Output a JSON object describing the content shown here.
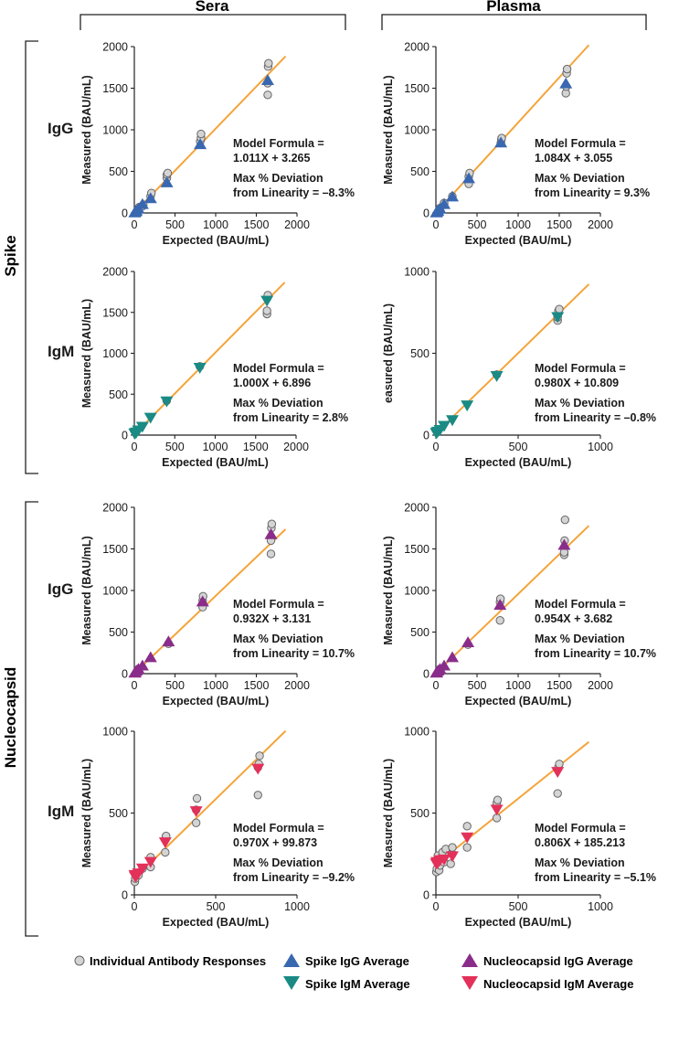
{
  "columns": [
    "Sera",
    "Plasma"
  ],
  "rows": {
    "spike": "Spike",
    "nucleocapsid": "Nucleocapsid"
  },
  "colors": {
    "line": "#f4a43a",
    "spike_igg": "#3a68b0",
    "spike_igm": "#1a8a84",
    "nucleo_igg": "#8a2d8a",
    "nucleo_igm": "#e3315a",
    "individual_fill": "#d4d4d4",
    "individual_stroke": "#666666"
  },
  "legend": [
    {
      "label": "Individual Antibody Responses",
      "marker": "circle",
      "color": "#d4d4d4"
    },
    {
      "label": "Spike IgG Average",
      "marker": "triangle-up",
      "color": "#3a68b0"
    },
    {
      "label": "Nucleocapsid IgG Average",
      "marker": "triangle-up",
      "color": "#8a2d8a"
    },
    {
      "label": "Spike IgM Average",
      "marker": "triangle-down",
      "color": "#1a8a84"
    },
    {
      "label": "Nucleocapsid IgM Average",
      "marker": "triangle-down",
      "color": "#e3315a"
    }
  ],
  "chart_data": [
    {
      "type": "scatter",
      "id": "sera-spike-igg",
      "row_label": "IgG",
      "xlabel": "Expected (BAU/mL)",
      "ylabel": "Measured (BAU/mL)",
      "xlim": [
        0,
        2000
      ],
      "ylim": [
        0,
        2000
      ],
      "xticks": [
        0,
        500,
        1000,
        1500,
        2000
      ],
      "yticks": [
        0,
        500,
        1000,
        1500,
        2000
      ],
      "fit": {
        "slope": 1.011,
        "intercept": 3.265
      },
      "annotation": [
        "Model Formula =",
        "1.011X + 3.265",
        "Max % Deviation",
        "from Linearity = –8.3%"
      ],
      "average": {
        "name": "Spike IgG Average",
        "marker": "triangle-up",
        "color": "#3a68b0",
        "x": [
          5,
          12,
          25,
          50,
          100,
          200,
          400,
          810,
          1640
        ],
        "y": [
          10,
          18,
          30,
          55,
          110,
          180,
          370,
          830,
          1600
        ]
      },
      "individual": {
        "name": "Individual Antibody Responses",
        "x": [
          50,
          60,
          100,
          110,
          200,
          210,
          400,
          400,
          410,
          810,
          820,
          820,
          1640,
          1640,
          1645,
          1650
        ],
        "y": [
          40,
          70,
          80,
          100,
          200,
          240,
          420,
          460,
          480,
          860,
          900,
          950,
          1420,
          1560,
          1760,
          1800
        ]
      }
    },
    {
      "type": "scatter",
      "id": "plasma-spike-igg",
      "row_label": "",
      "xlabel": "Expected (BAU/mL)",
      "ylabel": "Measured (BAU/mL)",
      "xlim": [
        0,
        2000
      ],
      "ylim": [
        0,
        2000
      ],
      "xticks": [
        0,
        500,
        1000,
        1500,
        2000
      ],
      "yticks": [
        0,
        500,
        1000,
        1500,
        2000
      ],
      "fit": {
        "slope": 1.084,
        "intercept": 3.055
      },
      "annotation": [
        "Model Formula =",
        "1.084X + 3.055",
        "Max % Deviation",
        "from Linearity = 9.3%"
      ],
      "average": {
        "name": "Spike IgG Average",
        "marker": "triangle-up",
        "color": "#3a68b0",
        "x": [
          5,
          12,
          25,
          50,
          100,
          200,
          400,
          790,
          1580
        ],
        "y": [
          10,
          18,
          30,
          55,
          110,
          200,
          420,
          850,
          1560
        ]
      },
      "individual": {
        "name": "Individual Antibody Responses",
        "x": [
          50,
          100,
          100,
          200,
          400,
          400,
          410,
          790,
          795,
          800,
          1580,
          1585,
          1590,
          1595
        ],
        "y": [
          60,
          100,
          120,
          200,
          350,
          440,
          480,
          840,
          880,
          900,
          1440,
          1520,
          1680,
          1730
        ]
      }
    },
    {
      "type": "scatter",
      "id": "sera-spike-igm",
      "row_label": "IgM",
      "xlabel": "Expected (BAU/mL)",
      "ylabel": "Measured (BAU/mL)",
      "xlim": [
        0,
        2000
      ],
      "ylim": [
        0,
        2000
      ],
      "xticks": [
        0,
        500,
        1000,
        1500,
        2000
      ],
      "yticks": [
        0,
        500,
        1000,
        1500,
        2000
      ],
      "fit": {
        "slope": 1.0,
        "intercept": 6.896
      },
      "annotation": [
        "Model Formula =",
        "1.000X + 6.896",
        "Max % Deviation",
        "from Linearity = 2.8%"
      ],
      "average": {
        "name": "Spike IgM Average",
        "marker": "triangle-down",
        "color": "#1a8a84",
        "x": [
          5,
          12,
          25,
          50,
          100,
          200,
          400,
          810,
          1640
        ],
        "y": [
          15,
          20,
          30,
          55,
          100,
          210,
          410,
          820,
          1640
        ]
      },
      "individual": {
        "name": "Individual Antibody Responses",
        "x": [
          400,
          810,
          1640,
          1640,
          1645,
          1650
        ],
        "y": [
          420,
          840,
          1480,
          1520,
          1680,
          1710
        ]
      }
    },
    {
      "type": "scatter",
      "id": "plasma-spike-igm",
      "row_label": "",
      "xlabel": "Expected (BAU/mL)",
      "ylabel": "easured (BAU/mL)",
      "xlim": [
        0,
        1000
      ],
      "ylim": [
        0,
        1000
      ],
      "xticks": [
        0,
        500,
        1000
      ],
      "yticks": [
        0,
        500,
        1000
      ],
      "fit": {
        "slope": 0.98,
        "intercept": 10.809
      },
      "annotation": [
        "Model Formula =",
        "0.980X + 10.809",
        "Max % Deviation",
        "from Linearity = –0.8%"
      ],
      "average": {
        "name": "Spike IgM Average",
        "marker": "triangle-down",
        "color": "#1a8a84",
        "x": [
          3,
          6,
          12,
          25,
          50,
          100,
          190,
          370,
          740
        ],
        "y": [
          10,
          15,
          20,
          30,
          55,
          90,
          180,
          360,
          720
        ]
      },
      "individual": {
        "name": "Individual Antibody Responses",
        "x": [
          370,
          740,
          740,
          745,
          750
        ],
        "y": [
          370,
          700,
          720,
          760,
          770
        ]
      }
    },
    {
      "type": "scatter",
      "id": "sera-nucleocapsid-igg",
      "row_label": "IgG",
      "xlabel": "Expected (BAU/mL)",
      "ylabel": "Measured (BAU/mL)",
      "xlim": [
        0,
        2000
      ],
      "ylim": [
        0,
        2000
      ],
      "xticks": [
        0,
        500,
        1000,
        1500,
        2000
      ],
      "yticks": [
        0,
        500,
        1000,
        1500,
        2000
      ],
      "fit": {
        "slope": 0.932,
        "intercept": 3.131
      },
      "annotation": [
        "Model Formula =",
        "0.932X + 3.131",
        "Max % Deviation",
        "from Linearity = 10.7%"
      ],
      "average": {
        "name": "Nucleocapsid IgG Average",
        "marker": "triangle-up",
        "color": "#8a2d8a",
        "x": [
          5,
          12,
          25,
          50,
          100,
          200,
          420,
          840,
          1680
        ],
        "y": [
          15,
          20,
          40,
          60,
          100,
          200,
          390,
          870,
          1680
        ]
      },
      "individual": {
        "name": "Individual Antibody Responses",
        "x": [
          420,
          840,
          840,
          845,
          1680,
          1680,
          1685,
          1690
        ],
        "y": [
          360,
          800,
          880,
          930,
          1440,
          1600,
          1750,
          1800
        ]
      }
    },
    {
      "type": "scatter",
      "id": "plasma-nucleocapsid-igg",
      "row_label": "",
      "xlabel": "Expected (BAU/mL)",
      "ylabel": "Measured (BAU/mL)",
      "xlim": [
        0,
        2000
      ],
      "ylim": [
        0,
        2000
      ],
      "xticks": [
        0,
        500,
        1000,
        1500,
        2000
      ],
      "yticks": [
        0,
        500,
        1000,
        1500,
        2000
      ],
      "fit": {
        "slope": 0.954,
        "intercept": 3.682
      },
      "annotation": [
        "Model Formula =",
        "0.954X + 3.682",
        "Max % Deviation",
        "from Linearity = 10.7%"
      ],
      "average": {
        "name": "Nucleocapsid IgG Average",
        "marker": "triangle-up",
        "color": "#8a2d8a",
        "x": [
          5,
          12,
          25,
          50,
          100,
          200,
          390,
          780,
          1560
        ],
        "y": [
          15,
          20,
          40,
          60,
          100,
          200,
          380,
          830,
          1550
        ]
      },
      "individual": {
        "name": "Individual Antibody Responses",
        "x": [
          390,
          780,
          780,
          785,
          1560,
          1560,
          1565,
          1570
        ],
        "y": [
          350,
          640,
          860,
          900,
          1430,
          1460,
          1600,
          1850
        ]
      }
    },
    {
      "type": "scatter",
      "id": "sera-nucleocapsid-igm",
      "row_label": "IgM",
      "xlabel": "Expected (BAU/mL)",
      "ylabel": "Measured (BAU/mL)",
      "xlim": [
        0,
        1000
      ],
      "ylim": [
        0,
        1000
      ],
      "xticks": [
        0,
        500,
        1000
      ],
      "yticks": [
        0,
        500,
        1000
      ],
      "fit": {
        "slope": 0.97,
        "intercept": 99.873
      },
      "annotation": [
        "Model Formula =",
        "0.970X + 99.873",
        "Max % Deviation",
        "from Linearity = –9.2%"
      ],
      "average": {
        "name": "Nucleocapsid IgM Average",
        "marker": "triangle-down",
        "color": "#e3315a",
        "x": [
          3,
          6,
          12,
          25,
          50,
          100,
          190,
          380,
          760
        ],
        "y": [
          120,
          110,
          115,
          130,
          160,
          200,
          320,
          510,
          770
        ]
      },
      "individual": {
        "name": "Individual Antibody Responses",
        "x": [
          3,
          6,
          12,
          25,
          50,
          100,
          100,
          190,
          190,
          195,
          380,
          380,
          385,
          760,
          760,
          765,
          770
        ],
        "y": [
          80,
          100,
          130,
          120,
          160,
          170,
          230,
          260,
          340,
          360,
          440,
          520,
          590,
          610,
          780,
          800,
          850
        ]
      }
    },
    {
      "type": "scatter",
      "id": "plasma-nucleocapsid-igm",
      "row_label": "",
      "xlabel": "Expected (BAU/mL)",
      "ylabel": "Measured (BAU/mL)",
      "xlim": [
        0,
        1000
      ],
      "ylim": [
        0,
        1000
      ],
      "xticks": [
        0,
        500,
        1000
      ],
      "yticks": [
        0,
        500,
        1000
      ],
      "fit": {
        "slope": 0.806,
        "intercept": 185.213
      },
      "annotation": [
        "Model Formula =",
        "0.806X + 185.213",
        "Max % Deviation",
        "from Linearity = –5.1%"
      ],
      "average": {
        "name": "Nucleocapsid IgM Average",
        "marker": "triangle-down",
        "color": "#e3315a",
        "x": [
          3,
          6,
          12,
          25,
          50,
          100,
          190,
          370,
          740
        ],
        "y": [
          190,
          200,
          195,
          210,
          215,
          235,
          350,
          520,
          750
        ]
      },
      "individual": {
        "name": "Individual Antibody Responses",
        "x": [
          3,
          6,
          12,
          20,
          25,
          40,
          50,
          60,
          90,
          100,
          100,
          190,
          190,
          370,
          370,
          375,
          740,
          745,
          750
        ],
        "y": [
          140,
          160,
          240,
          150,
          180,
          260,
          200,
          280,
          190,
          250,
          290,
          290,
          420,
          470,
          560,
          580,
          620,
          780,
          800
        ]
      }
    }
  ]
}
